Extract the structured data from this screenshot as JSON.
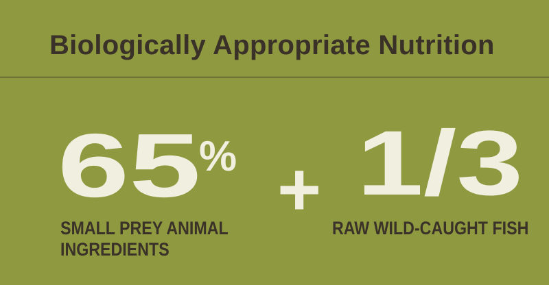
{
  "title": "Biologically Appropriate Nutrition",
  "colors": {
    "background": "#8f9a40",
    "number": "#f1efe0",
    "text": "#3a3128"
  },
  "stat_left": {
    "value": "65",
    "unit": "%",
    "label_line1": "SMALL PREY ANIMAL",
    "label_line2": "INGREDIENTS"
  },
  "operator": "+",
  "stat_right": {
    "value": "1/3",
    "label_line1": "RAW WILD-CAUGHT FISH"
  }
}
